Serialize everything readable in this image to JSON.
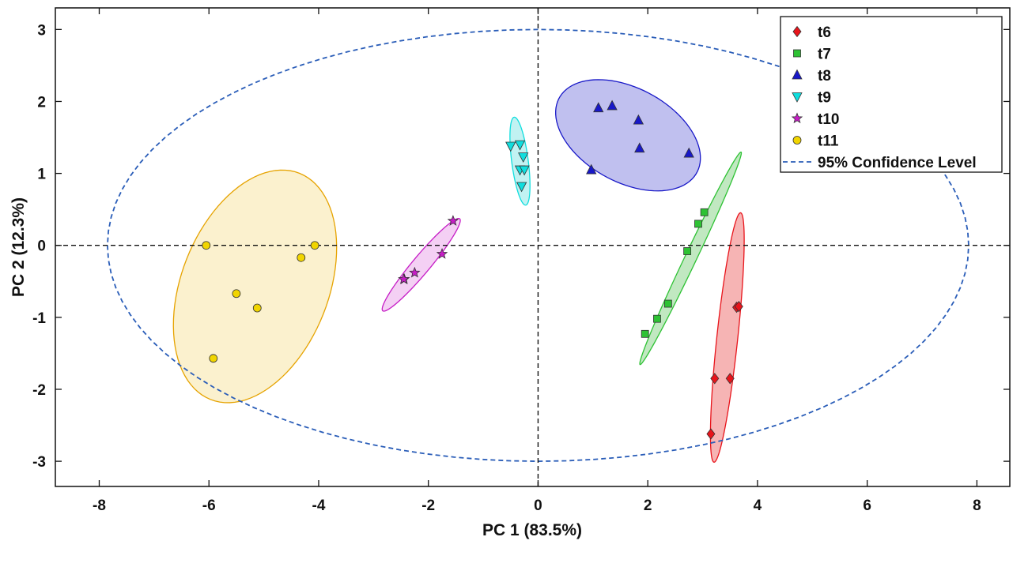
{
  "chart_data": {
    "type": "scatter",
    "xlabel": "PC 1 (83.5%)",
    "ylabel": "PC 2 (12.3%)",
    "xlim": [
      -8.8,
      8.6
    ],
    "ylim": [
      -3.35,
      3.3
    ],
    "xticks": [
      -8,
      -6,
      -4,
      -2,
      0,
      2,
      4,
      6,
      8
    ],
    "yticks": [
      -3,
      -2,
      -1,
      0,
      1,
      2,
      3
    ],
    "grid": false,
    "reference_lines": {
      "x": 0,
      "y": 0,
      "style": "dashed"
    },
    "legend_position": "top-right",
    "series": [
      {
        "name": "t6",
        "marker": "diamond",
        "color": "#e8141b",
        "points": [
          [
            3.15,
            -2.62
          ],
          [
            3.22,
            -1.85
          ],
          [
            3.5,
            -1.85
          ],
          [
            3.62,
            -0.86
          ],
          [
            3.66,
            -0.85
          ]
        ],
        "ellipse": {
          "cx": 3.45,
          "cy": -1.28,
          "rx": 1.75,
          "ry": 0.19,
          "angle": 82,
          "fill": "#f5a7a7",
          "stroke": "#e8141b"
        }
      },
      {
        "name": "t7",
        "marker": "square",
        "color": "#2ec234",
        "points": [
          [
            1.95,
            -1.23
          ],
          [
            2.17,
            -1.02
          ],
          [
            2.37,
            -0.81
          ],
          [
            2.72,
            -0.08
          ],
          [
            2.92,
            0.3
          ],
          [
            3.03,
            0.46
          ]
        ],
        "ellipse": {
          "cx": 2.78,
          "cy": -0.18,
          "rx": 1.74,
          "ry": 0.1,
          "angle": 58,
          "fill": "#b6e4b6",
          "stroke": "#2ec234"
        }
      },
      {
        "name": "t8",
        "marker": "triangle-up",
        "color": "#1818c8",
        "points": [
          [
            1.1,
            1.91
          ],
          [
            1.35,
            1.94
          ],
          [
            1.83,
            1.74
          ],
          [
            1.85,
            1.35
          ],
          [
            2.75,
            1.28
          ],
          [
            0.97,
            1.05
          ]
        ],
        "ellipse": {
          "cx": 1.64,
          "cy": 1.53,
          "rx": 1.37,
          "ry": 0.68,
          "angle": -18,
          "fill": "#b5b5ec",
          "stroke": "#1818c8"
        }
      },
      {
        "name": "t9",
        "marker": "triangle-down",
        "color": "#10dede",
        "points": [
          [
            -0.5,
            1.38
          ],
          [
            -0.33,
            1.4
          ],
          [
            -0.27,
            1.23
          ],
          [
            -0.33,
            1.05
          ],
          [
            -0.25,
            1.05
          ],
          [
            -0.3,
            0.82
          ]
        ],
        "ellipse": {
          "cx": -0.33,
          "cy": 1.17,
          "rx": 0.62,
          "ry": 0.15,
          "angle": -80,
          "fill": "#b6f0f0",
          "stroke": "#10dede"
        }
      },
      {
        "name": "t10",
        "marker": "star",
        "color": "#c61dc6",
        "points": [
          [
            -1.55,
            0.34
          ],
          [
            -1.75,
            -0.12
          ],
          [
            -2.25,
            -0.38
          ],
          [
            -2.44,
            -0.47
          ],
          [
            -2.45,
            -0.47
          ]
        ],
        "ellipse": {
          "cx": -2.13,
          "cy": -0.27,
          "rx": 0.95,
          "ry": 0.14,
          "angle": 42,
          "fill": "#f2c8f2",
          "stroke": "#c61dc6"
        }
      },
      {
        "name": "t11",
        "marker": "circle",
        "color": "#f1d500",
        "points": [
          [
            -6.05,
            0.0
          ],
          [
            -4.07,
            0.0
          ],
          [
            -4.32,
            -0.17
          ],
          [
            -5.5,
            -0.67
          ],
          [
            -5.12,
            -0.87
          ],
          [
            -5.92,
            -1.57
          ]
        ],
        "ellipse": {
          "cx": -5.16,
          "cy": -0.57,
          "rx": 1.8,
          "ry": 1.26,
          "angle": 52,
          "fill": "#faeec6",
          "stroke": "#e6a300"
        }
      }
    ],
    "confidence_ellipse": {
      "name": "95% Confidence Level",
      "cx": 0,
      "cy": 0,
      "rx": 7.85,
      "ry": 3.0,
      "color": "#2a5db8",
      "style": "dashed"
    }
  }
}
